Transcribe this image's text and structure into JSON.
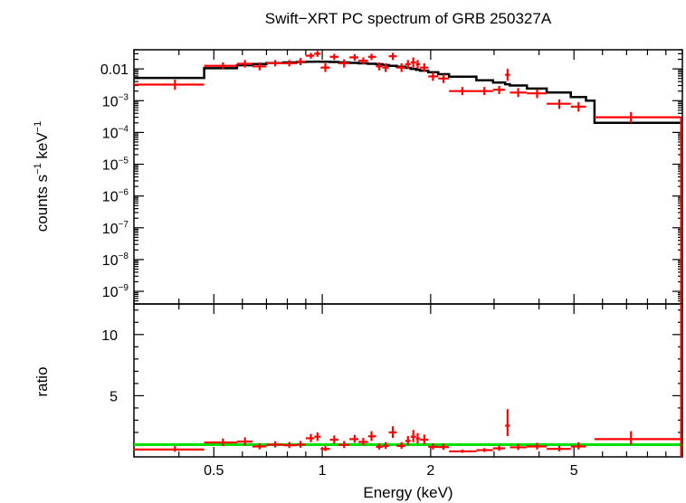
{
  "chart_data": [
    {
      "type": "scatter",
      "title": "Swift−XRT PC spectrum of GRB 250327A",
      "ylabel_html": [
        "counts s",
        "−1",
        " keV",
        "−1"
      ],
      "xscale": "log",
      "yscale": "log",
      "xlim": [
        0.3,
        10
      ],
      "ylim": [
        4e-10,
        0.04
      ],
      "y_ticks": [
        {
          "v": 0.01,
          "label": "0.01",
          "sup": ""
        },
        {
          "v": 0.001,
          "label": "10",
          "sup": "−3"
        },
        {
          "v": 0.0001,
          "label": "10",
          "sup": "−4"
        },
        {
          "v": 1e-05,
          "label": "10",
          "sup": "−5"
        },
        {
          "v": 1e-06,
          "label": "10",
          "sup": "−6"
        },
        {
          "v": 1e-07,
          "label": "10",
          "sup": "−7"
        },
        {
          "v": 1e-08,
          "label": "10",
          "sup": "−8"
        },
        {
          "v": 1e-09,
          "label": "10",
          "sup": "−9"
        }
      ],
      "series": [
        {
          "role": "data",
          "color": "#ff0000",
          "points": [
            {
              "x": 0.39,
              "xlo": 0.3,
              "xhi": 0.47,
              "y": 0.0032,
              "ylo": 0.0022,
              "yhi": 0.0046
            },
            {
              "x": 0.53,
              "xlo": 0.47,
              "xhi": 0.58,
              "y": 0.0125,
              "ylo": 0.01,
              "yhi": 0.016
            },
            {
              "x": 0.61,
              "xlo": 0.58,
              "xhi": 0.64,
              "y": 0.0145,
              "ylo": 0.011,
              "yhi": 0.019
            },
            {
              "x": 0.67,
              "xlo": 0.64,
              "xhi": 0.7,
              "y": 0.012,
              "ylo": 0.009,
              "yhi": 0.016
            },
            {
              "x": 0.74,
              "xlo": 0.7,
              "xhi": 0.78,
              "y": 0.015,
              "ylo": 0.012,
              "yhi": 0.019
            },
            {
              "x": 0.81,
              "xlo": 0.78,
              "xhi": 0.85,
              "y": 0.015,
              "ylo": 0.012,
              "yhi": 0.019
            },
            {
              "x": 0.87,
              "xlo": 0.85,
              "xhi": 0.9,
              "y": 0.017,
              "ylo": 0.013,
              "yhi": 0.022
            },
            {
              "x": 0.93,
              "xlo": 0.9,
              "xhi": 0.95,
              "y": 0.026,
              "ylo": 0.021,
              "yhi": 0.032
            },
            {
              "x": 0.97,
              "xlo": 0.95,
              "xhi": 0.99,
              "y": 0.03,
              "ylo": 0.024,
              "yhi": 0.037
            },
            {
              "x": 1.02,
              "xlo": 0.99,
              "xhi": 1.05,
              "y": 0.011,
              "ylo": 0.008,
              "yhi": 0.015
            },
            {
              "x": 1.08,
              "xlo": 1.05,
              "xhi": 1.11,
              "y": 0.024,
              "ylo": 0.019,
              "yhi": 0.03
            },
            {
              "x": 1.15,
              "xlo": 1.11,
              "xhi": 1.19,
              "y": 0.015,
              "ylo": 0.011,
              "yhi": 0.02
            },
            {
              "x": 1.23,
              "xlo": 1.19,
              "xhi": 1.26,
              "y": 0.023,
              "ylo": 0.018,
              "yhi": 0.029
            },
            {
              "x": 1.3,
              "xlo": 1.26,
              "xhi": 1.34,
              "y": 0.018,
              "ylo": 0.014,
              "yhi": 0.023
            },
            {
              "x": 1.37,
              "xlo": 1.34,
              "xhi": 1.41,
              "y": 0.024,
              "ylo": 0.019,
              "yhi": 0.03
            },
            {
              "x": 1.44,
              "xlo": 1.41,
              "xhi": 1.47,
              "y": 0.012,
              "ylo": 0.009,
              "yhi": 0.016
            },
            {
              "x": 1.5,
              "xlo": 1.47,
              "xhi": 1.53,
              "y": 0.011,
              "ylo": 0.008,
              "yhi": 0.015
            },
            {
              "x": 1.57,
              "xlo": 1.53,
              "xhi": 1.61,
              "y": 0.025,
              "ylo": 0.019,
              "yhi": 0.032
            },
            {
              "x": 1.66,
              "xlo": 1.61,
              "xhi": 1.7,
              "y": 0.011,
              "ylo": 0.008,
              "yhi": 0.015
            },
            {
              "x": 1.73,
              "xlo": 1.7,
              "xhi": 1.76,
              "y": 0.014,
              "ylo": 0.01,
              "yhi": 0.019
            },
            {
              "x": 1.79,
              "xlo": 1.76,
              "xhi": 1.82,
              "y": 0.016,
              "ylo": 0.011,
              "yhi": 0.023
            },
            {
              "x": 1.84,
              "xlo": 1.82,
              "xhi": 1.87,
              "y": 0.014,
              "ylo": 0.01,
              "yhi": 0.019
            },
            {
              "x": 1.92,
              "xlo": 1.87,
              "xhi": 1.97,
              "y": 0.011,
              "ylo": 0.008,
              "yhi": 0.015
            },
            {
              "x": 2.03,
              "xlo": 1.97,
              "xhi": 2.1,
              "y": 0.0058,
              "ylo": 0.0042,
              "yhi": 0.0078
            },
            {
              "x": 2.17,
              "xlo": 2.1,
              "xhi": 2.25,
              "y": 0.005,
              "ylo": 0.0036,
              "yhi": 0.0068
            },
            {
              "x": 2.45,
              "xlo": 2.25,
              "xhi": 2.68,
              "y": 0.002,
              "ylo": 0.0015,
              "yhi": 0.0027
            },
            {
              "x": 2.82,
              "xlo": 2.68,
              "xhi": 2.98,
              "y": 0.002,
              "ylo": 0.0015,
              "yhi": 0.0027
            },
            {
              "x": 3.1,
              "xlo": 2.98,
              "xhi": 3.22,
              "y": 0.0022,
              "ylo": 0.0016,
              "yhi": 0.0029
            },
            {
              "x": 3.27,
              "xlo": 3.22,
              "xhi": 3.32,
              "y": 0.0065,
              "ylo": 0.0042,
              "yhi": 0.01
            },
            {
              "x": 3.5,
              "xlo": 3.32,
              "xhi": 3.7,
              "y": 0.0018,
              "ylo": 0.0013,
              "yhi": 0.0025
            },
            {
              "x": 3.95,
              "xlo": 3.7,
              "xhi": 4.2,
              "y": 0.0017,
              "ylo": 0.0012,
              "yhi": 0.0023
            },
            {
              "x": 4.55,
              "xlo": 4.2,
              "xhi": 4.9,
              "y": 0.0008,
              "ylo": 0.00055,
              "yhi": 0.0011
            },
            {
              "x": 5.15,
              "xlo": 4.9,
              "xhi": 5.4,
              "y": 0.00065,
              "ylo": 0.00045,
              "yhi": 0.0009
            },
            {
              "x": 7.2,
              "xlo": 5.7,
              "xhi": 9.9,
              "y": 0.0003,
              "ylo": 0.0002,
              "yhi": 0.00044
            },
            {
              "x": 9.92,
              "xlo": 9.85,
              "xhi": 10.0,
              "y": 0.0001,
              "ylo": 4e-10,
              "yhi": 0.0003
            }
          ]
        },
        {
          "role": "model",
          "color": "#000000",
          "steps": [
            [
              0.3,
              0.0052
            ],
            [
              0.47,
              0.0105
            ],
            [
              0.58,
              0.013
            ],
            [
              0.64,
              0.0142
            ],
            [
              0.7,
              0.0152
            ],
            [
              0.78,
              0.016
            ],
            [
              0.85,
              0.0165
            ],
            [
              0.9,
              0.0168
            ],
            [
              0.95,
              0.017
            ],
            [
              0.99,
              0.0168
            ],
            [
              1.05,
              0.0165
            ],
            [
              1.11,
              0.016
            ],
            [
              1.19,
              0.0155
            ],
            [
              1.26,
              0.015
            ],
            [
              1.34,
              0.0145
            ],
            [
              1.41,
              0.014
            ],
            [
              1.47,
              0.0132
            ],
            [
              1.53,
              0.0125
            ],
            [
              1.61,
              0.0117
            ],
            [
              1.7,
              0.0108
            ],
            [
              1.76,
              0.01
            ],
            [
              1.82,
              0.0094
            ],
            [
              1.87,
              0.0088
            ],
            [
              1.97,
              0.0078
            ],
            [
              2.1,
              0.0068
            ],
            [
              2.25,
              0.0057
            ],
            [
              2.68,
              0.0044
            ],
            [
              2.98,
              0.0037
            ],
            [
              3.22,
              0.0033
            ],
            [
              3.32,
              0.003
            ],
            [
              3.7,
              0.0024
            ],
            [
              4.2,
              0.0018
            ],
            [
              4.9,
              0.0013
            ],
            [
              5.4,
              0.001
            ],
            [
              5.7,
              0.0002
            ],
            [
              10.0,
              0.0002
            ]
          ]
        }
      ]
    },
    {
      "type": "scatter",
      "ylabel": "ratio",
      "xlabel": "Energy (keV)",
      "xscale": "log",
      "xlim": [
        0.3,
        10
      ],
      "ylim": [
        0,
        12.5
      ],
      "y_ticks": [
        {
          "v": 5,
          "label": "5"
        },
        {
          "v": 10,
          "label": "10"
        }
      ],
      "x_ticks": [
        {
          "v": 0.5,
          "label": "0.5"
        },
        {
          "v": 1,
          "label": "1"
        },
        {
          "v": 2,
          "label": "2"
        },
        {
          "v": 5,
          "label": "5"
        }
      ],
      "reference_line": {
        "y": 1,
        "color": "#00e000"
      },
      "series": [
        {
          "role": "ratio",
          "color": "#ff0000",
          "points": [
            {
              "x": 0.39,
              "xlo": 0.3,
              "xhi": 0.47,
              "y": 0.6,
              "ylo": 0.42,
              "yhi": 0.88
            },
            {
              "x": 0.53,
              "xlo": 0.47,
              "xhi": 0.58,
              "y": 1.18,
              "ylo": 0.9,
              "yhi": 1.5
            },
            {
              "x": 0.61,
              "xlo": 0.58,
              "xhi": 0.64,
              "y": 1.25,
              "ylo": 0.95,
              "yhi": 1.6
            },
            {
              "x": 0.67,
              "xlo": 0.64,
              "xhi": 0.7,
              "y": 0.85,
              "ylo": 0.62,
              "yhi": 1.12
            },
            {
              "x": 0.74,
              "xlo": 0.7,
              "xhi": 0.78,
              "y": 1.0,
              "ylo": 0.76,
              "yhi": 1.28
            },
            {
              "x": 0.81,
              "xlo": 0.78,
              "xhi": 0.85,
              "y": 0.95,
              "ylo": 0.72,
              "yhi": 1.22
            },
            {
              "x": 0.87,
              "xlo": 0.85,
              "xhi": 0.9,
              "y": 1.0,
              "ylo": 0.75,
              "yhi": 1.3
            },
            {
              "x": 0.93,
              "xlo": 0.9,
              "xhi": 0.95,
              "y": 1.52,
              "ylo": 1.2,
              "yhi": 1.88
            },
            {
              "x": 0.97,
              "xlo": 0.95,
              "xhi": 0.99,
              "y": 1.65,
              "ylo": 1.3,
              "yhi": 2.0
            },
            {
              "x": 1.02,
              "xlo": 0.99,
              "xhi": 1.05,
              "y": 0.65,
              "ylo": 0.48,
              "yhi": 0.88
            },
            {
              "x": 1.08,
              "xlo": 1.05,
              "xhi": 1.11,
              "y": 1.4,
              "ylo": 1.1,
              "yhi": 1.75
            },
            {
              "x": 1.15,
              "xlo": 1.11,
              "xhi": 1.19,
              "y": 0.98,
              "ylo": 0.72,
              "yhi": 1.3
            },
            {
              "x": 1.23,
              "xlo": 1.19,
              "xhi": 1.26,
              "y": 1.45,
              "ylo": 1.15,
              "yhi": 1.8
            },
            {
              "x": 1.3,
              "xlo": 1.26,
              "xhi": 1.34,
              "y": 1.22,
              "ylo": 0.95,
              "yhi": 1.55
            },
            {
              "x": 1.37,
              "xlo": 1.34,
              "xhi": 1.41,
              "y": 1.68,
              "ylo": 1.3,
              "yhi": 2.1
            },
            {
              "x": 1.44,
              "xlo": 1.41,
              "xhi": 1.47,
              "y": 0.82,
              "ylo": 0.6,
              "yhi": 1.1
            },
            {
              "x": 1.5,
              "xlo": 1.47,
              "xhi": 1.53,
              "y": 0.9,
              "ylo": 0.66,
              "yhi": 1.2
            },
            {
              "x": 1.57,
              "xlo": 1.53,
              "xhi": 1.61,
              "y": 2.0,
              "ylo": 1.55,
              "yhi": 2.5
            },
            {
              "x": 1.66,
              "xlo": 1.61,
              "xhi": 1.7,
              "y": 0.9,
              "ylo": 0.66,
              "yhi": 1.2
            },
            {
              "x": 1.73,
              "xlo": 1.7,
              "xhi": 1.76,
              "y": 1.3,
              "ylo": 0.98,
              "yhi": 1.7
            },
            {
              "x": 1.79,
              "xlo": 1.76,
              "xhi": 1.82,
              "y": 1.65,
              "ylo": 1.2,
              "yhi": 2.2
            },
            {
              "x": 1.84,
              "xlo": 1.82,
              "xhi": 1.87,
              "y": 1.5,
              "ylo": 1.1,
              "yhi": 1.95
            },
            {
              "x": 1.92,
              "xlo": 1.87,
              "xhi": 1.97,
              "y": 1.4,
              "ylo": 1.05,
              "yhi": 1.82
            },
            {
              "x": 2.03,
              "xlo": 1.97,
              "xhi": 2.1,
              "y": 0.82,
              "ylo": 0.6,
              "yhi": 1.1
            },
            {
              "x": 2.17,
              "xlo": 2.1,
              "xhi": 2.25,
              "y": 0.8,
              "ylo": 0.58,
              "yhi": 1.08
            },
            {
              "x": 2.45,
              "xlo": 2.25,
              "xhi": 2.68,
              "y": 0.45,
              "ylo": 0.33,
              "yhi": 0.6
            },
            {
              "x": 2.82,
              "xlo": 2.68,
              "xhi": 2.98,
              "y": 0.55,
              "ylo": 0.4,
              "yhi": 0.72
            },
            {
              "x": 3.1,
              "xlo": 2.98,
              "xhi": 3.22,
              "y": 0.7,
              "ylo": 0.5,
              "yhi": 0.92
            },
            {
              "x": 3.27,
              "xlo": 3.22,
              "xhi": 3.32,
              "y": 2.55,
              "ylo": 1.7,
              "yhi": 3.9
            },
            {
              "x": 3.5,
              "xlo": 3.32,
              "xhi": 3.7,
              "y": 0.78,
              "ylo": 0.56,
              "yhi": 1.05
            },
            {
              "x": 3.95,
              "xlo": 3.7,
              "xhi": 4.2,
              "y": 0.85,
              "ylo": 0.6,
              "yhi": 1.15
            },
            {
              "x": 4.55,
              "xlo": 4.2,
              "xhi": 4.9,
              "y": 0.65,
              "ylo": 0.45,
              "yhi": 0.9
            },
            {
              "x": 5.15,
              "xlo": 4.9,
              "xhi": 5.4,
              "y": 0.85,
              "ylo": 0.6,
              "yhi": 1.2
            },
            {
              "x": 7.2,
              "xlo": 5.7,
              "xhi": 9.9,
              "y": 1.45,
              "ylo": 1.0,
              "yhi": 2.1
            },
            {
              "x": 9.92,
              "xlo": 9.85,
              "xhi": 10.0,
              "y": 0.5,
              "ylo": 0.0,
              "yhi": 12.5
            }
          ]
        }
      ]
    }
  ]
}
